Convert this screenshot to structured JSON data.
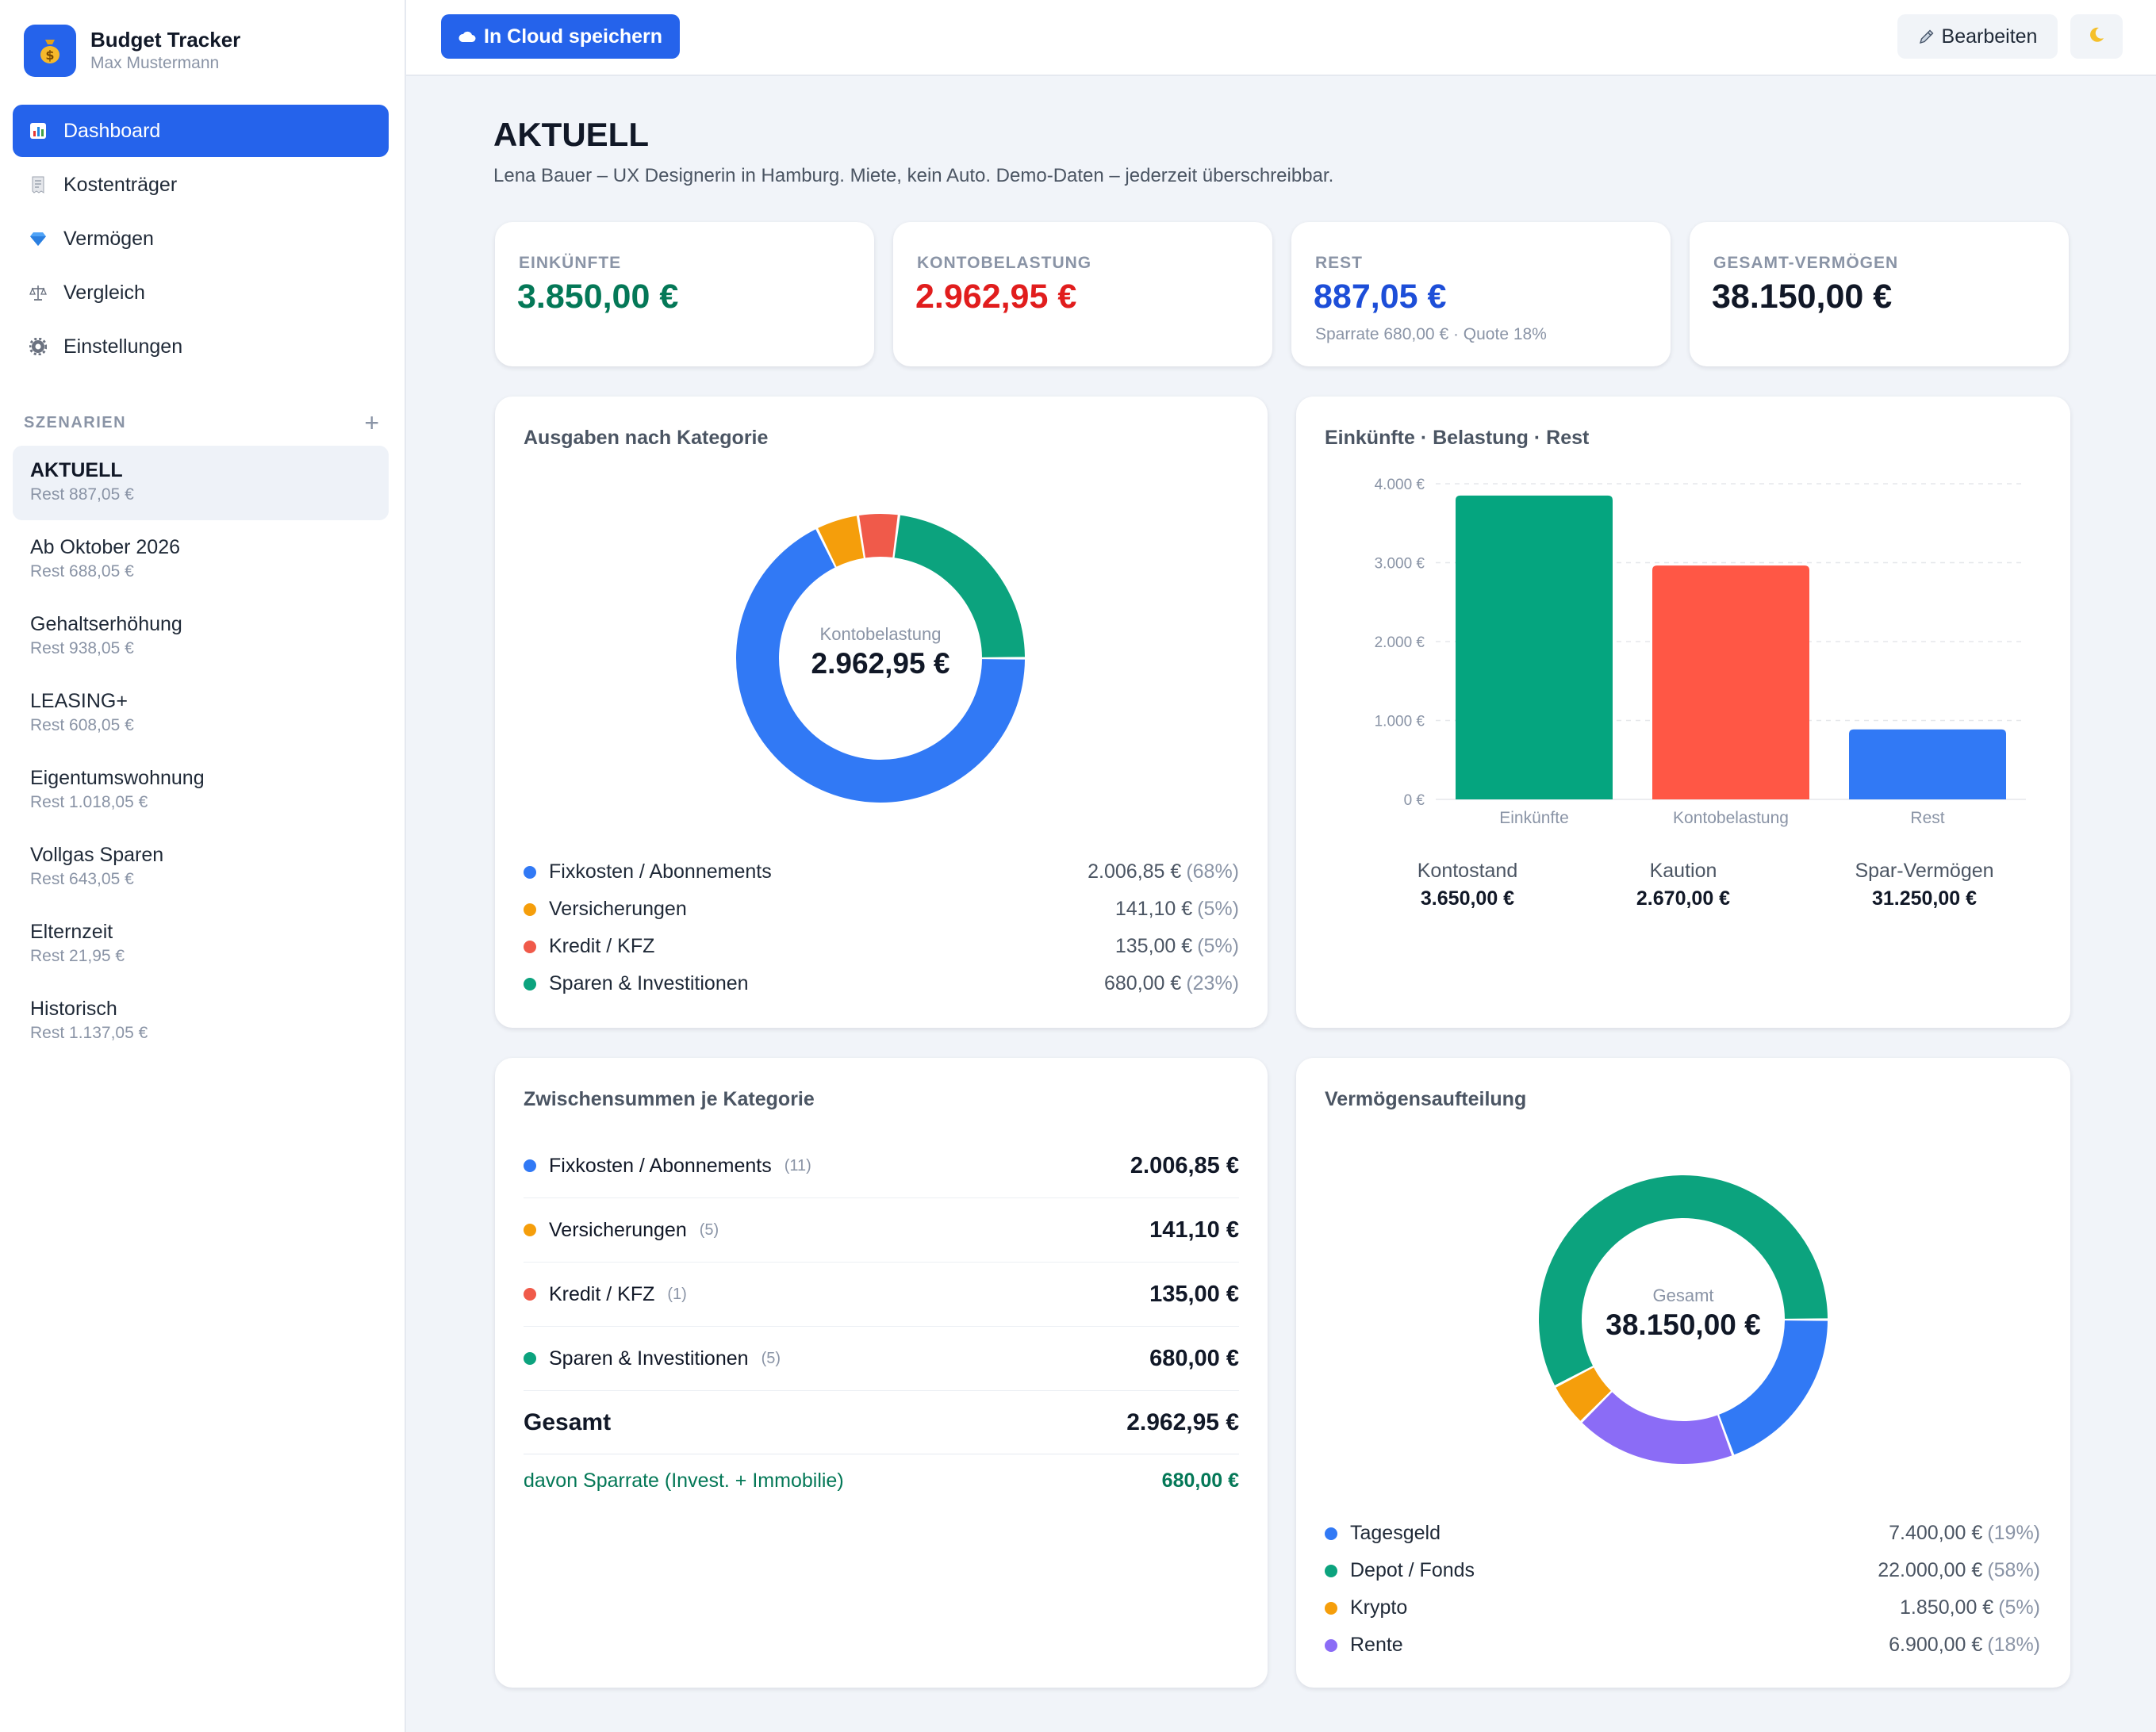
{
  "app": {
    "title": "Budget Tracker",
    "user": "Max Mustermann"
  },
  "nav": [
    {
      "label": "Dashboard",
      "icon": "chart-icon",
      "active": true
    },
    {
      "label": "Kostenträger",
      "icon": "receipt-icon",
      "active": false
    },
    {
      "label": "Vermögen",
      "icon": "gem-icon",
      "active": false
    },
    {
      "label": "Vergleich",
      "icon": "scale-icon",
      "active": false
    },
    {
      "label": "Einstellungen",
      "icon": "gear-icon",
      "active": false
    }
  ],
  "scenarios_header": {
    "label": "SZENARIEN",
    "add_label": "+"
  },
  "scenarios": [
    {
      "name": "AKTUELL",
      "rest": "Rest 887,05 €",
      "active": true
    },
    {
      "name": "Ab Oktober 2026",
      "rest": "Rest 688,05 €"
    },
    {
      "name": "Gehaltserhöhung",
      "rest": "Rest 938,05 €"
    },
    {
      "name": "LEASING+",
      "rest": "Rest 608,05 €"
    },
    {
      "name": "Eigentumswohnung",
      "rest": "Rest 1.018,05 €"
    },
    {
      "name": "Vollgas Sparen",
      "rest": "Rest 643,05 €"
    },
    {
      "name": "Elternzeit",
      "rest": "Rest 21,95 €"
    },
    {
      "name": "Historisch",
      "rest": "Rest 1.137,05 €"
    }
  ],
  "topbar": {
    "cloud_label": "In Cloud speichern",
    "edit_label": "Bearbeiten"
  },
  "page": {
    "title": "AKTUELL",
    "description": "Lena Bauer – UX Designerin in Hamburg. Miete, kein Auto. Demo-Daten – jederzeit überschreibbar."
  },
  "kpis": [
    {
      "label": "EINKÜNFTE",
      "value": "3.850,00 €",
      "color": "#047857",
      "sub": ""
    },
    {
      "label": "KONTOBELASTUNG",
      "value": "2.962,95 €",
      "color": "#e11d1d",
      "sub": ""
    },
    {
      "label": "REST",
      "value": "887,05 €",
      "color": "#1d4ed8",
      "sub": "Sparrate 680,00 € · Quote 18%"
    },
    {
      "label": "GESAMT-VERMÖGEN",
      "value": "38.150,00 €",
      "color": "#111827",
      "sub": ""
    }
  ],
  "expenses_card": {
    "title": "Ausgaben nach Kategorie",
    "center_label": "Kontobelastung",
    "center_value": "2.962,95 €",
    "segments": [
      {
        "name": "Fixkosten / Abonnements",
        "value": 2006.85,
        "value_text": "2.006,85 €",
        "pct_text": "(68%)",
        "color": "#3179f5"
      },
      {
        "name": "Versicherungen",
        "value": 141.1,
        "value_text": "141,10 €",
        "pct_text": "(5%)",
        "color": "#f59e0b"
      },
      {
        "name": "Kredit / KFZ",
        "value": 135.0,
        "value_text": "135,00 €",
        "pct_text": "(5%)",
        "color": "#f05a4a"
      },
      {
        "name": "Sparen & Investitionen",
        "value": 680.0,
        "value_text": "680,00 €",
        "pct_text": "(23%)",
        "color": "#0ca37e"
      }
    ]
  },
  "bar_card": {
    "title": "Einkünfte · Belastung · Rest",
    "chart_data": {
      "type": "bar",
      "categories": [
        "Einkünfte",
        "Kontobelastung",
        "Rest"
      ],
      "values": [
        3850.0,
        2962.95,
        887.05
      ],
      "colors": [
        "#05a57f",
        "#ff5745",
        "#3179f5"
      ],
      "ylim": [
        0,
        4000
      ],
      "yticks": [
        0,
        1000,
        2000,
        3000,
        4000
      ],
      "ytick_labels": [
        "0 €",
        "1.000 €",
        "2.000 €",
        "3.000 €",
        "4.000 €"
      ],
      "grid": true,
      "title": "",
      "xlabel": "",
      "ylabel": ""
    },
    "stats": [
      {
        "label": "Kontostand",
        "value": "3.650,00 €"
      },
      {
        "label": "Kaution",
        "value": "2.670,00 €"
      },
      {
        "label": "Spar-Vermögen",
        "value": "31.250,00 €"
      }
    ]
  },
  "subtotals_card": {
    "title": "Zwischensummen je Kategorie",
    "rows": [
      {
        "name": "Fixkosten / Abonnements",
        "count": "(11)",
        "value": "2.006,85 €",
        "color": "#3179f5"
      },
      {
        "name": "Versicherungen",
        "count": "(5)",
        "value": "141,10 €",
        "color": "#f59e0b"
      },
      {
        "name": "Kredit / KFZ",
        "count": "(1)",
        "value": "135,00 €",
        "color": "#f05a4a"
      },
      {
        "name": "Sparen & Investitionen",
        "count": "(5)",
        "value": "680,00 €",
        "color": "#0ca37e"
      }
    ],
    "total_label": "Gesamt",
    "total_value": "2.962,95 €",
    "saving_label": "davon Sparrate (Invest. + Immobilie)",
    "saving_value": "680,00 €"
  },
  "assets_card": {
    "title": "Vermögensaufteilung",
    "center_label": "Gesamt",
    "center_value": "38.150,00 €",
    "segments": [
      {
        "name": "Tagesgeld",
        "value": 7400.0,
        "value_text": "7.400,00 €",
        "pct_text": "(19%)",
        "color": "#3179f5"
      },
      {
        "name": "Rente",
        "value": 6900.0,
        "value_text": "6.900,00 €",
        "pct_text": "(18%)",
        "color": "#8b6cf6"
      },
      {
        "name": "Krypto",
        "value": 1850.0,
        "value_text": "1.850,00 €",
        "pct_text": "(5%)",
        "color": "#f59e0b"
      },
      {
        "name": "Depot / Fonds",
        "value": 22000.0,
        "value_text": "22.000,00 €",
        "pct_text": "(58%)",
        "color": "#0ca37e"
      }
    ],
    "legend_order": [
      0,
      3,
      2,
      1
    ]
  }
}
